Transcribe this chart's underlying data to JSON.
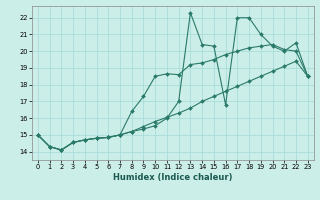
{
  "xlabel": "Humidex (Indice chaleur)",
  "bg_color": "#cceee8",
  "grid_color": "#aaddda",
  "line_color": "#2a7a6a",
  "xlim": [
    -0.5,
    23.5
  ],
  "ylim": [
    13.5,
    22.7
  ],
  "xticks": [
    0,
    1,
    2,
    3,
    4,
    5,
    6,
    7,
    8,
    9,
    10,
    11,
    12,
    13,
    14,
    15,
    16,
    17,
    18,
    19,
    20,
    21,
    22,
    23
  ],
  "yticks": [
    14,
    15,
    16,
    17,
    18,
    19,
    20,
    21,
    22
  ],
  "line1_x": [
    0,
    1,
    2,
    3,
    4,
    5,
    6,
    7,
    8,
    9,
    10,
    11,
    12,
    13,
    14,
    15,
    16,
    17,
    18,
    19,
    20,
    21,
    22,
    23
  ],
  "line1_y": [
    15.0,
    14.3,
    14.1,
    14.55,
    14.7,
    14.8,
    14.85,
    15.0,
    15.2,
    15.35,
    15.55,
    16.0,
    17.0,
    22.3,
    20.4,
    20.3,
    16.8,
    22.0,
    22.0,
    21.0,
    20.3,
    20.0,
    20.5,
    18.5
  ],
  "line2_x": [
    0,
    1,
    2,
    3,
    4,
    5,
    6,
    7,
    8,
    9,
    10,
    11,
    12,
    13,
    14,
    15,
    16,
    17,
    18,
    19,
    20,
    21,
    22,
    23
  ],
  "line2_y": [
    15.0,
    14.3,
    14.1,
    14.55,
    14.7,
    14.8,
    14.85,
    15.0,
    16.4,
    17.3,
    18.5,
    18.65,
    18.6,
    19.2,
    19.3,
    19.5,
    19.8,
    20.0,
    20.2,
    20.3,
    20.4,
    20.1,
    20.0,
    18.5
  ],
  "line3_x": [
    0,
    1,
    2,
    3,
    4,
    5,
    6,
    7,
    8,
    9,
    10,
    11,
    12,
    13,
    14,
    15,
    16,
    17,
    18,
    19,
    20,
    21,
    22,
    23
  ],
  "line3_y": [
    15.0,
    14.3,
    14.1,
    14.55,
    14.7,
    14.8,
    14.85,
    15.0,
    15.2,
    15.5,
    15.8,
    16.05,
    16.3,
    16.6,
    17.0,
    17.3,
    17.6,
    17.9,
    18.2,
    18.5,
    18.8,
    19.1,
    19.4,
    18.5
  ]
}
